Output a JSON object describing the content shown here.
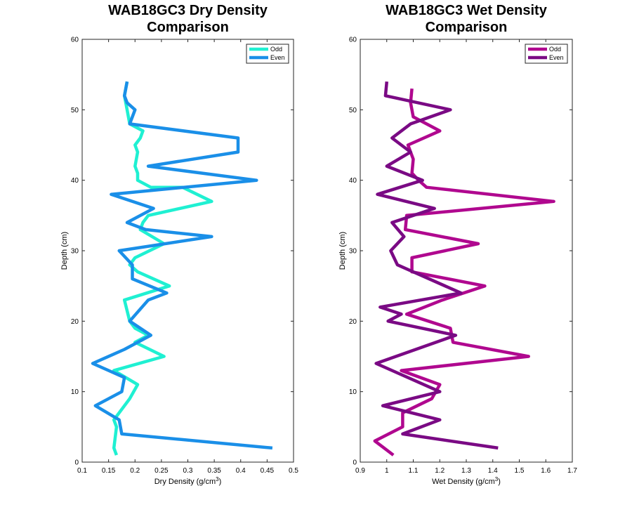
{
  "chart_data": [
    {
      "type": "line",
      "title_lines": [
        "WAB18GC3 Dry Density",
        "Comparison"
      ],
      "xlabel": "Dry Density (g/cm",
      "xlabel_sup": "3",
      "xlabel_end": ")",
      "ylabel": "Depth (cm)",
      "xlim": [
        0.1,
        0.5
      ],
      "ylim": [
        0,
        60
      ],
      "xticks": [
        0.1,
        0.15,
        0.2,
        0.25,
        0.3,
        0.35,
        0.4,
        0.45,
        0.5
      ],
      "xtick_labels": [
        "0.1",
        "0.15",
        "0.2",
        "0.25",
        "0.3",
        "0.35",
        "0.4",
        "0.45",
        "0.5"
      ],
      "yticks": [
        0,
        10,
        20,
        30,
        40,
        50,
        60
      ],
      "ytick_labels": [
        "0",
        "10",
        "20",
        "30",
        "40",
        "50",
        "60"
      ],
      "legend_position": "top-right",
      "series": [
        {
          "name": "Odd",
          "color": "#1ff0d2",
          "points": [
            [
              0.165,
              1
            ],
            [
              0.16,
              2
            ],
            [
              0.165,
              5
            ],
            [
              0.16,
              6
            ],
            [
              0.19,
              9
            ],
            [
              0.205,
              11
            ],
            [
              0.16,
              13
            ],
            [
              0.255,
              15
            ],
            [
              0.2,
              17
            ],
            [
              0.225,
              18
            ],
            [
              0.2,
              19
            ],
            [
              0.19,
              20
            ],
            [
              0.18,
              23
            ],
            [
              0.265,
              25
            ],
            [
              0.205,
              27
            ],
            [
              0.19,
              28
            ],
            [
              0.2,
              29
            ],
            [
              0.255,
              31
            ],
            [
              0.21,
              33
            ],
            [
              0.215,
              34
            ],
            [
              0.225,
              35
            ],
            [
              0.345,
              37
            ],
            [
              0.29,
              39
            ],
            [
              0.23,
              39
            ],
            [
              0.205,
              40
            ],
            [
              0.205,
              41
            ],
            [
              0.2,
              42
            ],
            [
              0.205,
              44
            ],
            [
              0.2,
              45
            ],
            [
              0.21,
              46
            ],
            [
              0.215,
              47
            ],
            [
              0.19,
              48
            ],
            [
              0.185,
              50
            ],
            [
              0.18,
              52
            ],
            [
              0.185,
              54
            ]
          ]
        },
        {
          "name": "Even",
          "color": "#1a8fe8",
          "points": [
            [
              0.46,
              2
            ],
            [
              0.175,
              4
            ],
            [
              0.17,
              6
            ],
            [
              0.125,
              8
            ],
            [
              0.175,
              10
            ],
            [
              0.18,
              12
            ],
            [
              0.12,
              14
            ],
            [
              0.18,
              16
            ],
            [
              0.23,
              18
            ],
            [
              0.19,
              20
            ],
            [
              0.225,
              23
            ],
            [
              0.26,
              24
            ],
            [
              0.195,
              26
            ],
            [
              0.195,
              28
            ],
            [
              0.17,
              30
            ],
            [
              0.345,
              32
            ],
            [
              0.22,
              33
            ],
            [
              0.185,
              34
            ],
            [
              0.235,
              36
            ],
            [
              0.155,
              38
            ],
            [
              0.43,
              40
            ],
            [
              0.225,
              42
            ],
            [
              0.395,
              44
            ],
            [
              0.395,
              46
            ],
            [
              0.19,
              48
            ],
            [
              0.2,
              50
            ],
            [
              0.185,
              51
            ],
            [
              0.18,
              52
            ],
            [
              0.185,
              54
            ]
          ]
        }
      ]
    },
    {
      "type": "line",
      "title_lines": [
        "WAB18GC3 Wet Density",
        "Comparison"
      ],
      "xlabel": "Wet Density (g/cm",
      "xlabel_sup": "3",
      "xlabel_end": ")",
      "ylabel": "Depth (cm)",
      "xlim": [
        0.9,
        1.7
      ],
      "ylim": [
        0,
        60
      ],
      "xticks": [
        0.9,
        1.0,
        1.1,
        1.2,
        1.3,
        1.4,
        1.5,
        1.6,
        1.7
      ],
      "xtick_labels": [
        "0.9",
        "1",
        "1.1",
        "1.2",
        "1.3",
        "1.4",
        "1.5",
        "1.6",
        "1.7"
      ],
      "yticks": [
        0,
        10,
        20,
        30,
        40,
        50,
        60
      ],
      "ytick_labels": [
        "0",
        "10",
        "20",
        "30",
        "40",
        "50",
        "60"
      ],
      "legend_position": "top-right",
      "series": [
        {
          "name": "Odd",
          "color": "#b0088f",
          "points": [
            [
              1.025,
              1
            ],
            [
              0.955,
              3
            ],
            [
              1.06,
              5
            ],
            [
              1.06,
              7
            ],
            [
              1.17,
              9
            ],
            [
              1.2,
              11
            ],
            [
              1.055,
              13
            ],
            [
              1.535,
              15
            ],
            [
              1.25,
              17
            ],
            [
              1.24,
              19
            ],
            [
              1.075,
              21
            ],
            [
              1.21,
              23
            ],
            [
              1.37,
              25
            ],
            [
              1.095,
              27
            ],
            [
              1.095,
              29
            ],
            [
              1.345,
              31
            ],
            [
              1.07,
              33
            ],
            [
              1.075,
              35
            ],
            [
              1.63,
              37
            ],
            [
              1.15,
              39
            ],
            [
              1.12,
              40
            ],
            [
              1.095,
              41
            ],
            [
              1.1,
              43
            ],
            [
              1.08,
              45
            ],
            [
              1.2,
              47
            ],
            [
              1.1,
              49
            ],
            [
              1.09,
              51
            ],
            [
              1.095,
              53
            ]
          ]
        },
        {
          "name": "Even",
          "color": "#7a0a84",
          "points": [
            [
              1.42,
              2
            ],
            [
              1.06,
              4
            ],
            [
              1.2,
              6
            ],
            [
              0.985,
              8
            ],
            [
              1.2,
              10
            ],
            [
              0.96,
              14
            ],
            [
              1.26,
              18
            ],
            [
              1.005,
              20
            ],
            [
              1.055,
              21
            ],
            [
              0.975,
              22
            ],
            [
              1.28,
              24
            ],
            [
              1.04,
              28
            ],
            [
              1.015,
              30
            ],
            [
              1.065,
              32
            ],
            [
              1.02,
              34
            ],
            [
              1.18,
              36
            ],
            [
              0.965,
              38
            ],
            [
              1.135,
              40
            ],
            [
              1.0,
              42
            ],
            [
              1.09,
              44
            ],
            [
              1.02,
              46
            ],
            [
              1.09,
              48
            ],
            [
              1.24,
              50
            ],
            [
              0.995,
              52
            ],
            [
              1.0,
              54
            ]
          ]
        }
      ]
    }
  ]
}
